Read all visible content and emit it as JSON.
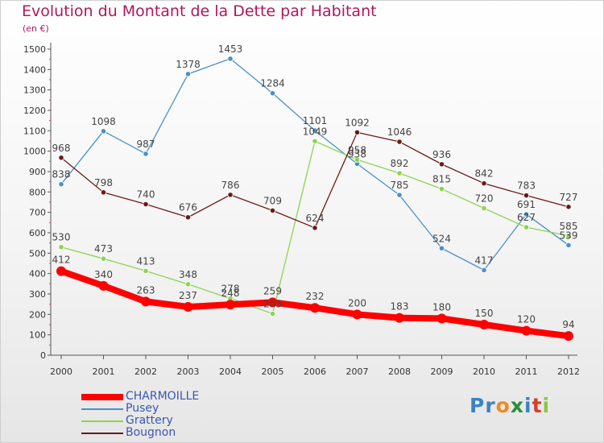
{
  "chart_data": {
    "type": "line",
    "title": "Evolution du Montant de la Dette par Habitant",
    "subtitle": "(en €)",
    "categories": [
      "2000",
      "2001",
      "2002",
      "2003",
      "2004",
      "2005",
      "2006",
      "2007",
      "2008",
      "2009",
      "2010",
      "2011",
      "2012"
    ],
    "ylim": [
      0,
      1500
    ],
    "yticks": [
      0,
      100,
      200,
      300,
      400,
      500,
      600,
      700,
      800,
      900,
      1000,
      1100,
      1200,
      1300,
      1400,
      1500
    ],
    "grid": false,
    "legend_position": "bottom-left",
    "series": [
      {
        "name": "CHARMOILLE",
        "color": "#ff0000",
        "emphasis": true,
        "values": [
          412,
          340,
          263,
          237,
          248,
          259,
          232,
          200,
          183,
          180,
          150,
          120,
          94
        ],
        "labels": [
          "412",
          "340",
          "263",
          "237",
          "248",
          "259",
          "232",
          "200",
          "183",
          "180",
          "150",
          "120",
          "94"
        ]
      },
      {
        "name": "Pusey",
        "color": "#4a90c8",
        "values": [
          838,
          1098,
          987,
          1378,
          1453,
          1284,
          1101,
          938,
          785,
          524,
          417,
          691,
          539
        ],
        "labels": [
          "838",
          "1098",
          "987",
          "1378",
          "1453",
          "1284",
          "1101",
          "938",
          "785",
          "524",
          "417",
          "691",
          "539"
        ]
      },
      {
        "name": "Grattery",
        "color": "#8cd450",
        "values": [
          530,
          473,
          413,
          348,
          278,
          203,
          1049,
          958,
          892,
          815,
          720,
          627,
          585
        ],
        "labels": [
          "530",
          "473",
          "413",
          "348",
          "278",
          "203",
          "1049",
          "958",
          "892",
          "815",
          "720",
          "627",
          "585"
        ]
      },
      {
        "name": "Bougnon",
        "color": "#6b1a1a",
        "values": [
          968,
          798,
          740,
          676,
          786,
          709,
          624,
          1092,
          1046,
          936,
          842,
          783,
          727
        ],
        "labels": [
          "968",
          "798",
          "740",
          "676",
          "786",
          "709",
          "624",
          "1092",
          "1046",
          "936",
          "842",
          "783",
          "727"
        ]
      }
    ]
  },
  "brand": {
    "letters": [
      "P",
      "r",
      "o",
      "x",
      "i",
      "t",
      "i"
    ],
    "colors": [
      "#3b82c4",
      "#3b82c4",
      "#f08a1c",
      "#2a8f3a",
      "#3b82c4",
      "#d63c2a",
      "#8cc63f"
    ]
  }
}
